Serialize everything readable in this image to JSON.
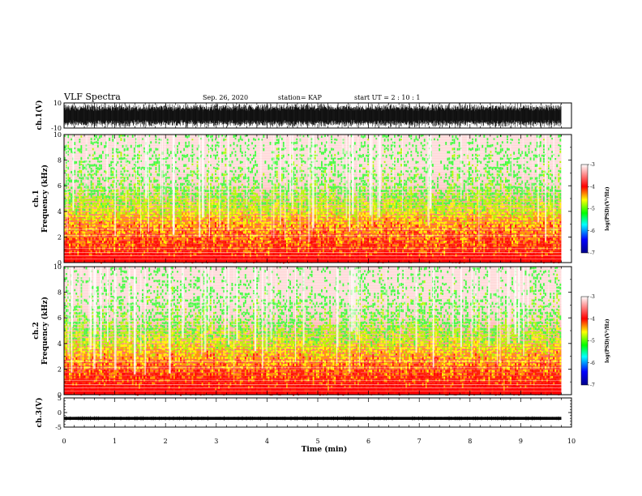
{
  "header": {
    "title": "VLF Spectra",
    "date": "Sep. 26, 2020",
    "station": "station= KAP",
    "start_ut": "start  UT =   2  : 10 : 1"
  },
  "colors": {
    "background": "#ffffff",
    "signal_trace": "#000000",
    "colormap": [
      "#00008b",
      "#0000ff",
      "#00ffff",
      "#00ff00",
      "#ffff00",
      "#ff0000",
      "#ffffff"
    ]
  },
  "chart_data": [
    {
      "type": "line",
      "panel": "ch1-waveform",
      "ylabel": "ch.1(V)",
      "xlim": [
        0,
        10
      ],
      "ylim": [
        -10,
        10
      ],
      "yticks": [
        "10",
        "-10"
      ],
      "data_extent_min": [
        0,
        9.8
      ],
      "amplitude_V": [
        -10,
        10
      ]
    },
    {
      "type": "heatmap",
      "panel": "ch1-spectrogram",
      "ylabel": "ch.1\nFrequency (kHz)",
      "xlim": [
        0,
        10
      ],
      "ylim": [
        0,
        10
      ],
      "yticks": [
        "0",
        "2",
        "4",
        "6",
        "8",
        "10"
      ],
      "data_extent_min": [
        0,
        9.8
      ],
      "colorbar": {
        "label": "log(PSD)(V²/Hz)",
        "range": [
          -7,
          -3
        ],
        "ticks": [
          "-3",
          "-4",
          "-5",
          "-6",
          "-7"
        ]
      },
      "intensity_profile_kHz_to_logPSD": [
        [
          0.2,
          -3.0
        ],
        [
          1,
          -3.6
        ],
        [
          2,
          -3.8
        ],
        [
          3,
          -4.0
        ],
        [
          4,
          -4.6
        ],
        [
          6,
          -5.3
        ],
        [
          8,
          -5.5
        ],
        [
          10,
          -5.6
        ]
      ]
    },
    {
      "type": "heatmap",
      "panel": "ch2-spectrogram",
      "ylabel": "ch.2\nFrequency (kHz)",
      "xlim": [
        0,
        10
      ],
      "ylim": [
        0,
        10
      ],
      "yticks": [
        "0",
        "2",
        "4",
        "6",
        "8",
        "10"
      ],
      "data_extent_min": [
        0,
        9.8
      ],
      "colorbar": {
        "label": "log(PSD)(V²/Hz)",
        "range": [
          -7,
          -3
        ],
        "ticks": [
          "-3",
          "-4",
          "-5",
          "-6",
          "-7"
        ]
      },
      "intensity_profile_kHz_to_logPSD": [
        [
          0.2,
          -3.0
        ],
        [
          1,
          -3.5
        ],
        [
          2,
          -3.8
        ],
        [
          3,
          -4.1
        ],
        [
          4,
          -4.6
        ],
        [
          6,
          -5.3
        ],
        [
          8,
          -5.5
        ],
        [
          10,
          -5.7
        ]
      ]
    },
    {
      "type": "line",
      "panel": "ch3-waveform",
      "ylabel": "ch.3(V)",
      "xlabel": "Time (min)",
      "xlim": [
        0,
        10
      ],
      "ylim": [
        -5,
        5
      ],
      "yticks": [
        "5",
        "0",
        "-5"
      ],
      "xticks": [
        "0",
        "1",
        "2",
        "3",
        "4",
        "5",
        "6",
        "7",
        "8",
        "9",
        "10"
      ],
      "data_extent_min": [
        0,
        9.8
      ],
      "offset_V": -2,
      "amplitude_V": [
        -2.5,
        -1.5
      ]
    }
  ]
}
